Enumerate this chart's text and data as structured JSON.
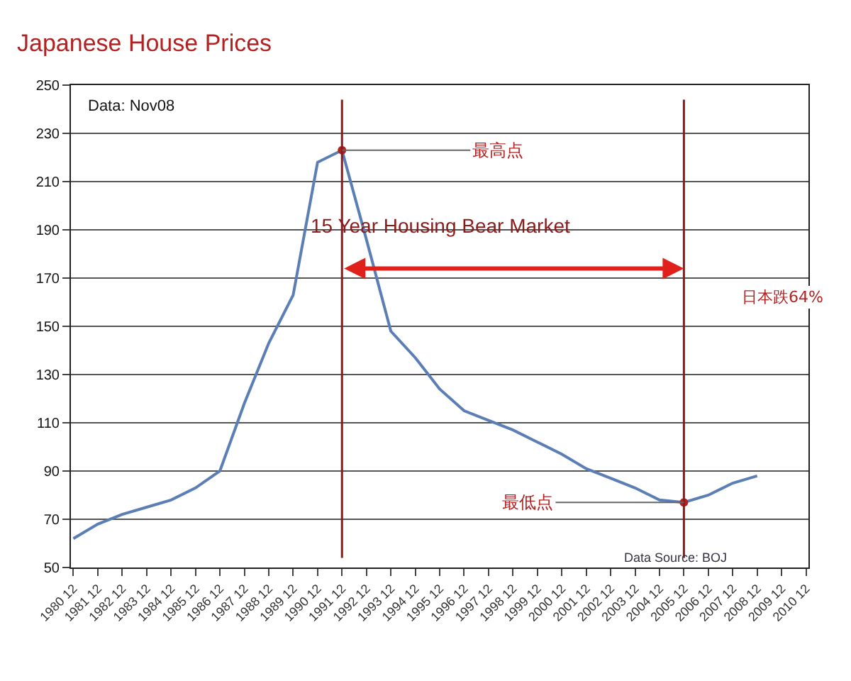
{
  "chart_data": {
    "type": "line",
    "title": "Japanese House Prices",
    "categories": [
      "1980 12",
      "1981 12",
      "1982 12",
      "1983 12",
      "1984 12",
      "1985 12",
      "1986 12",
      "1987 12",
      "1988 12",
      "1989 12",
      "1990 12",
      "1991 12",
      "1992 12",
      "1993 12",
      "1994 12",
      "1995 12",
      "1996 12",
      "1997 12",
      "1998 12",
      "1999 12",
      "2000 12",
      "2001 12",
      "2002 12",
      "2003 12",
      "2004 12",
      "2005 12",
      "2006 12",
      "2007 12",
      "2008 12",
      "2009 12",
      "2010 12"
    ],
    "series": [
      {
        "color": "#5b7fb5",
        "values": [
          62,
          68,
          72,
          75,
          78,
          83,
          90,
          118,
          143,
          163,
          218,
          223,
          186,
          148,
          137,
          124,
          115,
          111,
          107,
          102,
          97,
          91,
          87,
          83,
          78,
          77,
          80,
          85,
          88,
          null,
          null
        ]
      }
    ],
    "ylim": [
      50,
      250
    ],
    "yticks": [
      50,
      70,
      90,
      110,
      130,
      150,
      170,
      190,
      210,
      230,
      250
    ],
    "grid": "y",
    "marker": "none",
    "line_style": "solid",
    "ref_lines": [
      {
        "axis": "x",
        "value": "1991 12",
        "color": "#8b1a1a"
      },
      {
        "axis": "x",
        "value": "2005 12",
        "color": "#8b1a1a"
      }
    ],
    "annotations": [
      "Data: Nov08",
      "15 Year Housing Bear Market",
      "日本跌64%",
      "Data Source: BOJ",
      {
        "text": "最高点",
        "x": "1991 12",
        "y": 223
      },
      {
        "text": "最低点",
        "x": "2005 12",
        "y": 77
      }
    ]
  }
}
